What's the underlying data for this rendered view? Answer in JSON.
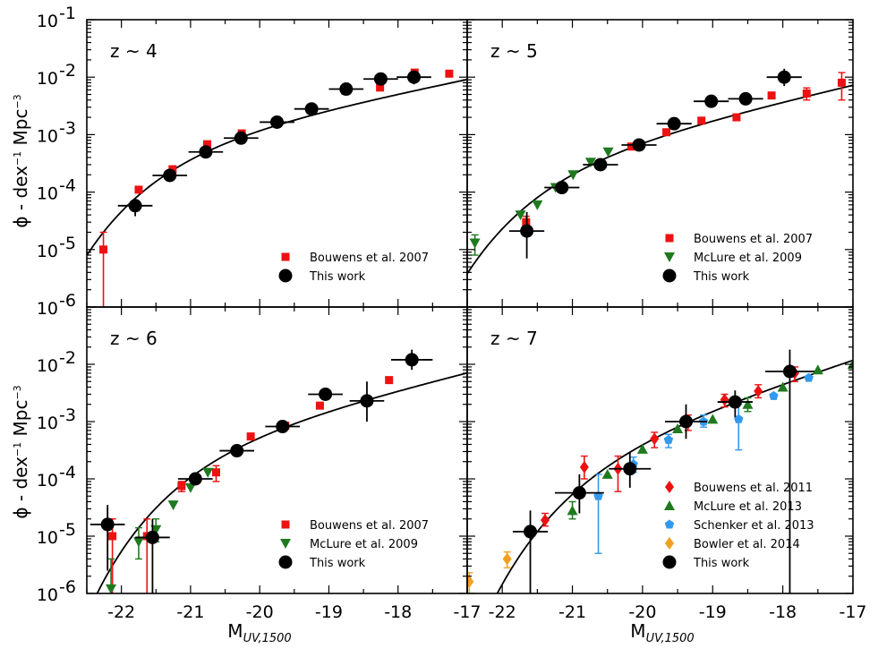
{
  "chart_data": {
    "type": "scatter",
    "xlabel": "M",
    "xlabel_sub": "UV,1500",
    "ylabel_prefix": "ϕ - dex",
    "ylabel_sup1": "−1",
    "ylabel_mid": " Mpc",
    "ylabel_sup2": "−3",
    "xlim": [
      -22.5,
      -17
    ],
    "ylim_log10": [
      -6,
      -1
    ],
    "x_tick_labels": [
      "-22",
      "-21",
      "-20",
      "-19",
      "-18",
      "-17"
    ],
    "y_tick_labels_top": [
      "10",
      "10",
      "10",
      "10",
      "10",
      "10"
    ],
    "y_tick_exps_top": [
      "-1",
      "-2",
      "-3",
      "-4",
      "-5",
      "-6"
    ],
    "y_tick_labels_bottom": [
      "10",
      "10",
      "10",
      "10",
      "10"
    ],
    "y_tick_exps_bottom": [
      "-2",
      "-3",
      "-4",
      "-5",
      "-6"
    ],
    "colors": {
      "bouwens2007": "#ee1111",
      "mclure2009": "#1f7a1f",
      "bouwens2011": "#ee1111",
      "mclure2013": "#1f7a1f",
      "schenker2013": "#3399ee",
      "bowler2014": "#f0a020",
      "this_work": "#000000"
    },
    "panels": [
      {
        "label": "z ~ 4",
        "fit": {
          "mstar": -21.0,
          "log_phistar": -2.97,
          "alpha": -1.61
        },
        "legend": [
          "Bouwens et al. 2007",
          "This work"
        ],
        "series": [
          {
            "key": "bouwens2007",
            "marker": "square",
            "points": [
              {
                "x": -22.26,
                "y": 1e-05,
                "ylo": 2e-07,
                "yhi": 2e-05
              },
              {
                "x": -21.75,
                "y": 0.00011
              },
              {
                "x": -21.26,
                "y": 0.00025
              },
              {
                "x": -20.76,
                "y": 0.00068
              },
              {
                "x": -20.26,
                "y": 0.00105
              },
              {
                "x": -19.76,
                "y": 0.0016
              },
              {
                "x": -19.26,
                "y": 0.0027
              },
              {
                "x": -18.76,
                "y": 0.0058
              },
              {
                "x": -18.26,
                "y": 0.0066
              },
              {
                "x": -17.76,
                "y": 0.012
              },
              {
                "x": -17.26,
                "y": 0.0115
              }
            ]
          },
          {
            "key": "this_work",
            "marker": "circle",
            "points": [
              {
                "x": -21.8,
                "y": 5.8e-05,
                "xerr": 0.25,
                "ylo": 3.8e-05,
                "yhi": 7.5e-05
              },
              {
                "x": -21.3,
                "y": 0.000195,
                "xerr": 0.25
              },
              {
                "x": -20.78,
                "y": 0.0005,
                "xerr": 0.25
              },
              {
                "x": -20.27,
                "y": 0.00087,
                "xerr": 0.25
              },
              {
                "x": -19.75,
                "y": 0.00165,
                "xerr": 0.25
              },
              {
                "x": -19.25,
                "y": 0.0028,
                "xerr": 0.25
              },
              {
                "x": -18.75,
                "y": 0.0062,
                "xerr": 0.25
              },
              {
                "x": -18.25,
                "y": 0.0093,
                "xerr": 0.25
              },
              {
                "x": -17.77,
                "y": 0.01,
                "xerr": 0.25,
                "ylo": 0.0075,
                "yhi": 0.013
              }
            ]
          }
        ]
      },
      {
        "label": "z ~ 5",
        "fit": {
          "mstar": -21.0,
          "log_phistar": -3.23,
          "alpha": -1.71
        },
        "legend": [
          "Bouwens et al. 2007",
          "McLure et al. 2009",
          "This work"
        ],
        "series": [
          {
            "key": "bouwens2007",
            "marker": "square",
            "points": [
              {
                "x": -21.66,
                "y": 3e-05,
                "ylo": 2e-05,
                "yhi": 3.8e-05
              },
              {
                "x": -20.16,
                "y": 0.00062
              },
              {
                "x": -19.66,
                "y": 0.0011
              },
              {
                "x": -19.16,
                "y": 0.00175
              },
              {
                "x": -18.66,
                "y": 0.002
              },
              {
                "x": -18.16,
                "y": 0.0048
              },
              {
                "x": -17.66,
                "y": 0.0052,
                "ylo": 0.004,
                "yhi": 0.0065
              },
              {
                "x": -17.16,
                "y": 0.008,
                "ylo": 0.004,
                "yhi": 0.012
              }
            ]
          },
          {
            "key": "mclure2009",
            "marker": "triangle-down",
            "points": [
              {
                "x": -22.39,
                "y": 1.3e-05,
                "ylo": 8e-06,
                "yhi": 1.8e-05
              },
              {
                "x": -21.74,
                "y": 4e-05
              },
              {
                "x": -21.5,
                "y": 6e-05
              },
              {
                "x": -21.24,
                "y": 0.00012
              },
              {
                "x": -20.99,
                "y": 0.0002
              },
              {
                "x": -20.74,
                "y": 0.00033
              },
              {
                "x": -20.49,
                "y": 0.0005
              }
            ]
          },
          {
            "key": "this_work",
            "marker": "circle",
            "points": [
              {
                "x": -21.65,
                "y": 2.1e-05,
                "xerr": 0.25,
                "ylo": 7e-06,
                "yhi": 4.5e-05
              },
              {
                "x": -21.15,
                "y": 0.00012,
                "xerr": 0.25
              },
              {
                "x": -20.6,
                "y": 0.0003,
                "xerr": 0.25
              },
              {
                "x": -20.05,
                "y": 0.00066,
                "xerr": 0.25
              },
              {
                "x": -19.55,
                "y": 0.00155,
                "xerr": 0.25
              },
              {
                "x": -19.02,
                "y": 0.0038,
                "xerr": 0.25
              },
              {
                "x": -18.53,
                "y": 0.0042,
                "xerr": 0.25
              },
              {
                "x": -17.98,
                "y": 0.01,
                "xerr": 0.25,
                "ylo": 0.007,
                "yhi": 0.014
              }
            ]
          }
        ]
      },
      {
        "label": "z ~ 6",
        "fit": {
          "mstar": -20.55,
          "log_phistar": -3.15,
          "alpha": -1.74
        },
        "legend": [
          "Bouwens et al. 2007",
          "McLure et al. 2009",
          "This work"
        ],
        "series": [
          {
            "key": "bouwens2007",
            "marker": "square",
            "points": [
              {
                "x": -22.13,
                "y": 1e-05,
                "ylo": 2e-07,
                "yhi": 2e-05
              },
              {
                "x": -21.63,
                "y": 1e-05,
                "ylo": 2e-07,
                "yhi": 2e-05
              },
              {
                "x": -21.13,
                "y": 7.5e-05,
                "ylo": 6e-05,
                "yhi": 9e-05
              },
              {
                "x": -20.63,
                "y": 0.00013,
                "ylo": 9e-05,
                "yhi": 0.00017
              },
              {
                "x": -20.13,
                "y": 0.00055
              },
              {
                "x": -19.63,
                "y": 0.00085
              },
              {
                "x": -19.13,
                "y": 0.0019
              },
              {
                "x": -18.13,
                "y": 0.0053
              }
            ]
          },
          {
            "key": "mclure2009",
            "marker": "triangle-down",
            "points": [
              {
                "x": -22.15,
                "y": 1.2e-06,
                "ylo": 2e-07,
                "yhi": 4e-06
              },
              {
                "x": -21.75,
                "y": 8e-06,
                "ylo": 4e-06,
                "yhi": 1.4e-05
              },
              {
                "x": -21.5,
                "y": 1.3e-05,
                "ylo": 8e-06,
                "yhi": 2e-05
              },
              {
                "x": -21.25,
                "y": 3.5e-05
              },
              {
                "x": -21.0,
                "y": 7e-05
              },
              {
                "x": -20.75,
                "y": 0.00013
              }
            ]
          },
          {
            "key": "this_work",
            "marker": "circle",
            "points": [
              {
                "x": -22.2,
                "y": 1.6e-05,
                "xerr": 0.25,
                "ylo": 2.5e-06,
                "yhi": 3.5e-05
              },
              {
                "x": -21.55,
                "y": 9.5e-06,
                "xerr": 0.25,
                "ylo": 2e-07,
                "yhi": 2e-05
              },
              {
                "x": -20.93,
                "y": 0.0001,
                "xerr": 0.25
              },
              {
                "x": -20.33,
                "y": 0.00031,
                "xerr": 0.25
              },
              {
                "x": -19.67,
                "y": 0.00082,
                "xerr": 0.25
              },
              {
                "x": -19.05,
                "y": 0.003,
                "xerr": 0.25
              },
              {
                "x": -18.45,
                "y": 0.0023,
                "xerr": 0.25,
                "ylo": 0.001,
                "yhi": 0.005
              },
              {
                "x": -17.8,
                "y": 0.012,
                "xerr": 0.3,
                "ylo": 0.008,
                "yhi": 0.018
              }
            ]
          }
        ]
      },
      {
        "label": "z ~ 7",
        "fit": {
          "mstar": -20.37,
          "log_phistar": -3.21,
          "alpha": -1.99
        },
        "legend": [
          "Bouwens et al. 2011",
          "McLure et al. 2013",
          "Schenker et al. 2013",
          "Bowler et al. 2014",
          "This work"
        ],
        "series": [
          {
            "key": "bouwens2011",
            "marker": "diamond",
            "points": [
              {
                "x": -21.39,
                "y": 1.9e-05,
                "ylo": 1.5e-05,
                "yhi": 2.5e-05
              },
              {
                "x": -20.83,
                "y": 0.00016,
                "ylo": 0.0001,
                "yhi": 0.00025
              },
              {
                "x": -20.35,
                "y": 0.00015,
                "ylo": 6e-05,
                "yhi": 0.00025
              },
              {
                "x": -19.83,
                "y": 0.0005,
                "ylo": 0.00035,
                "yhi": 0.00065
              },
              {
                "x": -19.35,
                "y": 0.001,
                "ylo": 0.0007,
                "yhi": 0.0013
              },
              {
                "x": -18.83,
                "y": 0.0024,
                "ylo": 0.0018,
                "yhi": 0.003
              },
              {
                "x": -18.35,
                "y": 0.0034,
                "ylo": 0.0026,
                "yhi": 0.0044
              },
              {
                "x": -17.83,
                "y": 0.007,
                "ylo": 0.005,
                "yhi": 0.009
              }
            ]
          },
          {
            "key": "mclure2013",
            "marker": "triangle-up",
            "points": [
              {
                "x": -21.0,
                "y": 2.8e-05,
                "ylo": 2e-05,
                "yhi": 4e-05
              },
              {
                "x": -20.5,
                "y": 0.00012
              },
              {
                "x": -20.0,
                "y": 0.00033
              },
              {
                "x": -19.5,
                "y": 0.00075
              },
              {
                "x": -19.0,
                "y": 0.0011
              },
              {
                "x": -18.5,
                "y": 0.002,
                "ylo": 0.0015,
                "yhi": 0.0026
              },
              {
                "x": -18.0,
                "y": 0.004
              },
              {
                "x": -17.5,
                "y": 0.008
              },
              {
                "x": -17.0,
                "y": 0.01
              }
            ]
          },
          {
            "key": "schenker2013",
            "marker": "pentagon",
            "points": [
              {
                "x": -20.63,
                "y": 5e-05,
                "ylo": 5e-06,
                "yhi": 0.00012
              },
              {
                "x": -20.13,
                "y": 0.00018,
                "ylo": 0.00013,
                "yhi": 0.00024
              },
              {
                "x": -19.63,
                "y": 0.00048,
                "ylo": 0.00035,
                "yhi": 0.0006
              },
              {
                "x": -19.13,
                "y": 0.001,
                "ylo": 0.0008,
                "yhi": 0.0013
              },
              {
                "x": -18.63,
                "y": 0.0011,
                "ylo": 0.00032,
                "yhi": 0.002
              },
              {
                "x": -18.13,
                "y": 0.0028
              },
              {
                "x": -17.63,
                "y": 0.0058
              }
            ]
          },
          {
            "key": "bowler2014",
            "marker": "diamond",
            "points": [
              {
                "x": -22.47,
                "y": 1.6e-06,
                "ylo": 1e-06,
                "yhi": 2.3e-06
              },
              {
                "x": -21.93,
                "y": 4e-06,
                "ylo": 2.8e-06,
                "yhi": 5.3e-06
              }
            ]
          },
          {
            "key": "this_work",
            "marker": "circle",
            "points": [
              {
                "x": -21.6,
                "y": 1.2e-05,
                "xerr": 0.25,
                "ylo": 2e-07,
                "yhi": 2.8e-05
              },
              {
                "x": -20.9,
                "y": 5.7e-05,
                "xerr": 0.35,
                "ylo": 2.5e-05,
                "yhi": 0.00012
              },
              {
                "x": -20.18,
                "y": 0.00015,
                "xerr": 0.3,
                "ylo": 7e-05,
                "yhi": 0.0003
              },
              {
                "x": -19.38,
                "y": 0.001,
                "xerr": 0.3,
                "ylo": 0.0005,
                "yhi": 0.002
              },
              {
                "x": -18.68,
                "y": 0.0022,
                "xerr": 0.25,
                "ylo": 0.0012,
                "yhi": 0.0035
              },
              {
                "x": -17.9,
                "y": 0.0075,
                "xerr": 0.35,
                "ylo": 2e-07,
                "yhi": 0.018
              }
            ]
          }
        ]
      }
    ]
  }
}
